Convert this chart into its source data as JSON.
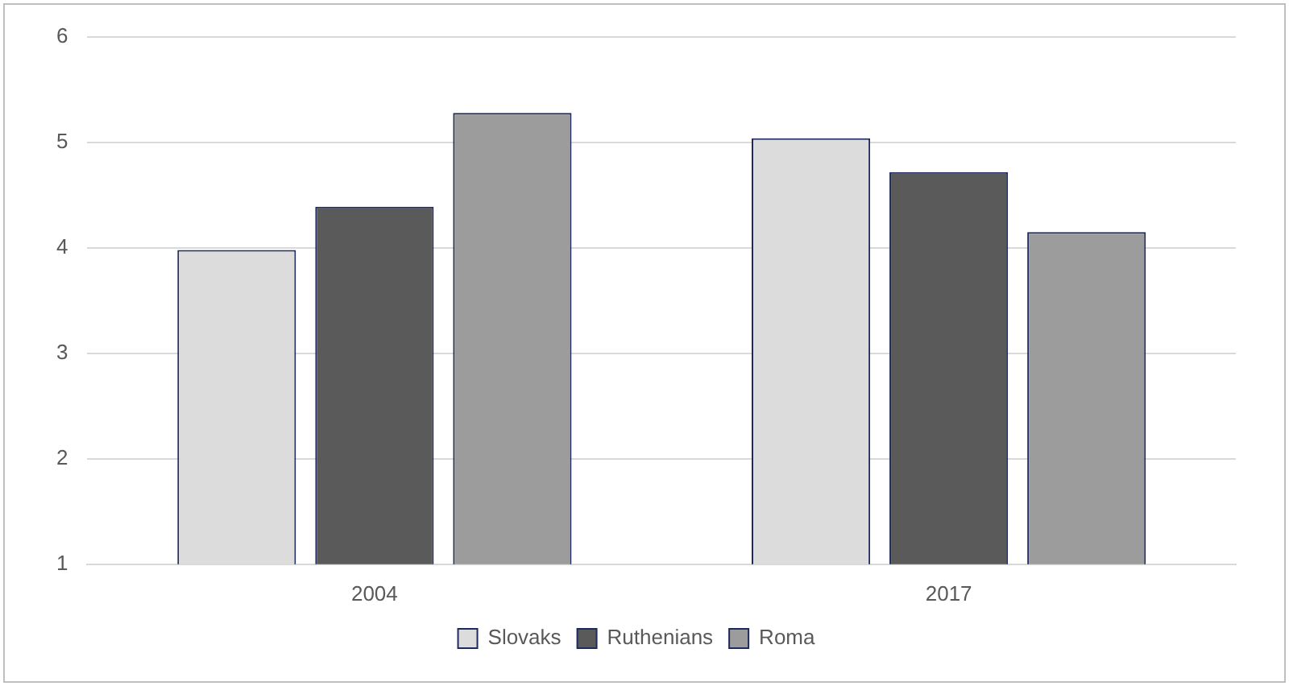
{
  "chart_data": {
    "type": "bar",
    "categories": [
      "2004",
      "2017"
    ],
    "series": [
      {
        "name": "Slovaks",
        "color": "#dcdcdc",
        "values": [
          3.98,
          5.04
        ]
      },
      {
        "name": "Ruthenians",
        "color": "#5a5a5a",
        "values": [
          4.39,
          4.72
        ]
      },
      {
        "name": "Roma",
        "color": "#9c9c9c",
        "values": [
          5.28,
          4.15
        ]
      }
    ],
    "ylim": [
      1,
      6
    ],
    "yticks": [
      1,
      2,
      3,
      4,
      5,
      6
    ],
    "grid": "y",
    "legend": "bottom"
  }
}
